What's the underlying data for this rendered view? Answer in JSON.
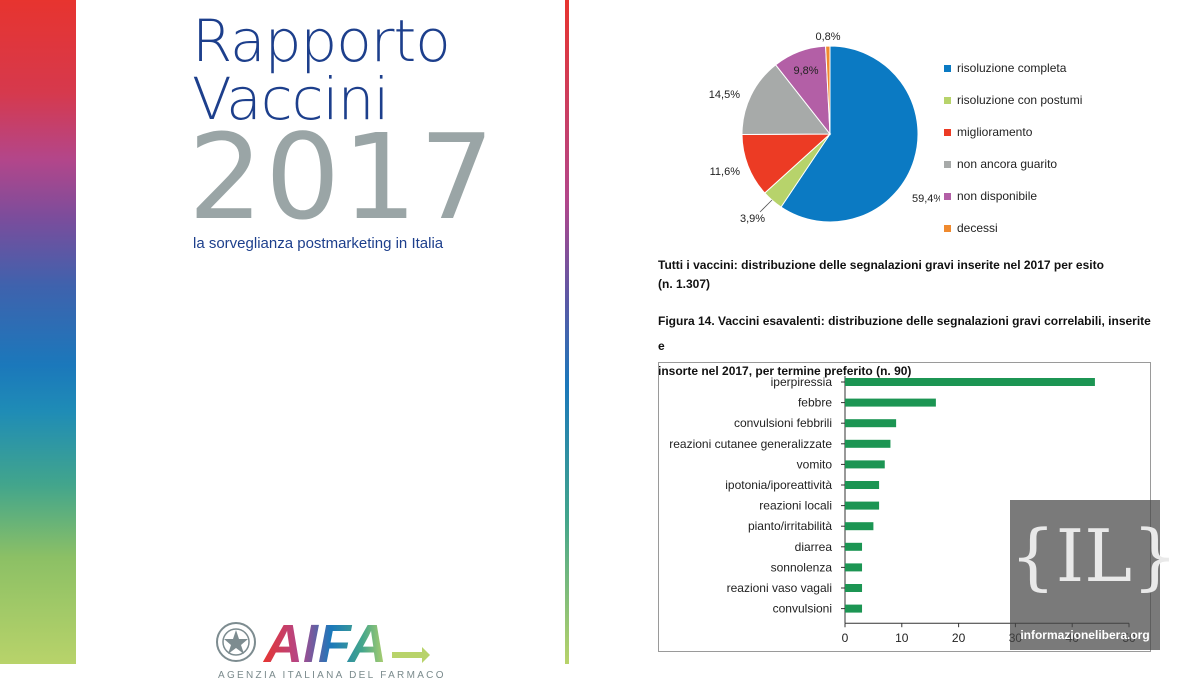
{
  "cover": {
    "title_line1": "Rapporto",
    "title_line2": "Vaccini",
    "year": "2017",
    "subtitle": "la sorveglianza postmarketing in Italia",
    "logo_text": "AIFA",
    "agency": "AGENZIA ITALIANA DEL FARMACO",
    "emblem_icon": "italian-republic-emblem-icon"
  },
  "colors": {
    "cover_blue": "#1d3f8c",
    "cover_gray": "#9aa5a6",
    "bar_green": "#1c9553"
  },
  "chart_data": [
    {
      "type": "pie",
      "categories": [
        "risoluzione completa",
        "risoluzione con postumi",
        "miglioramento",
        "non ancora guarito",
        "non disponibile",
        "decessi"
      ],
      "values": [
        59.4,
        3.9,
        11.6,
        14.5,
        9.8,
        0.8
      ],
      "labels": [
        "59,4%",
        "3,9%",
        "11,6%",
        "14,5%",
        "9,8%",
        "0,8%"
      ],
      "colors": [
        "#0b7ac3",
        "#b7d36b",
        "#ec3b24",
        "#a7aaa9",
        "#b35fa6",
        "#f08a2e"
      ],
      "legend_position": "right",
      "caption_line1": "Tutti i vaccini: distribuzione delle segnalazioni gravi inserite nel 2017 per esito",
      "caption_line2": "(n. 1.307)"
    },
    {
      "type": "bar",
      "orientation": "horizontal",
      "title_line1": "Figura 14. Vaccini esavalenti: distribuzione delle segnalazioni gravi correlabili, inserite e",
      "title_line2": "insorte nel 2017, per termine preferito (n. 90)",
      "categories": [
        "iperpiressia",
        "febbre",
        "convulsioni febbrili",
        "reazioni cutanee generalizzate",
        "vomito",
        "ipotonia/iporeattività",
        "reazioni locali",
        "pianto/irritabilità",
        "diarrea",
        "sonnolenza",
        "reazioni vaso vagali",
        "convulsioni"
      ],
      "values": [
        44,
        16,
        9,
        8,
        7,
        6,
        6,
        5,
        3,
        3,
        3,
        3
      ],
      "xlim": [
        0,
        50
      ],
      "xticks": [
        "0",
        "10",
        "20",
        "30",
        "40",
        "50"
      ],
      "grid": false
    }
  ],
  "watermark": {
    "logo": "{IL}",
    "text": "informazioneliberа.org"
  }
}
